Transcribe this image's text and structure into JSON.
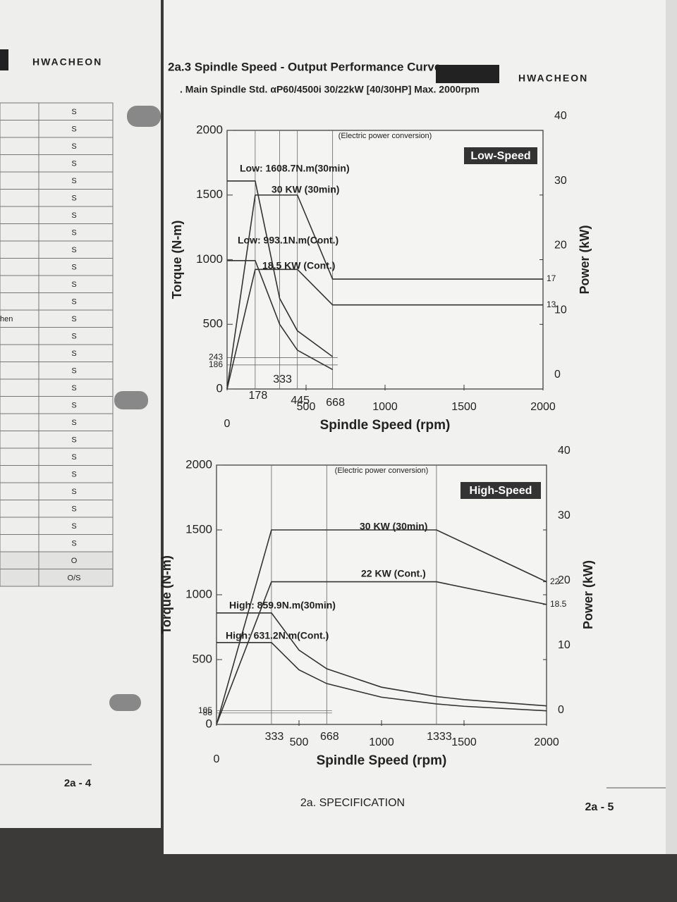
{
  "left_page": {
    "brand": "HWACHEON",
    "side_text": "hen",
    "cells": [
      "S",
      "S",
      "S",
      "S",
      "S",
      "S",
      "S",
      "S",
      "S",
      "S",
      "S",
      "S",
      "S",
      "S",
      "S",
      "S",
      "S",
      "S",
      "S",
      "S",
      "S",
      "S",
      "S",
      "S",
      "S",
      "S",
      "O",
      "O/S"
    ],
    "page_number": "2a - 4"
  },
  "header": {
    "brand": "HWACHEON",
    "title": "2a.3 Spindle Speed - Output Performance Curve",
    "subtitle": ". Main Spindle Std. αP60/4500i 30/22kW [40/30HP] Max. 2000rpm"
  },
  "chart_data": [
    {
      "type": "line",
      "badge": "Low-Speed",
      "note": "(Electric power conversion)",
      "x_label": "Spindle Speed (rpm)",
      "y_label": "Torque (N-m)",
      "y2_label": "Power (kW)",
      "xlim": [
        0,
        2000
      ],
      "xticks": [
        0,
        500,
        1000,
        1500,
        2000
      ],
      "xmarks": [
        178,
        333,
        445,
        668
      ],
      "ylim": [
        0,
        2000
      ],
      "yticks": [
        0,
        186,
        243,
        500,
        1000,
        1500,
        2000
      ],
      "y2lim": [
        0,
        40
      ],
      "y2ticks": [
        0,
        10,
        13,
        17,
        20,
        30,
        40
      ],
      "annotations": [
        "Low: 1608.7N.m(30min)",
        "30 KW (30min)",
        "Low: 993.1N.m(Cont.)",
        "18.5 KW (Cont.)"
      ],
      "series": [
        {
          "color": "#333333",
          "axis": "y",
          "x": [
            0,
            178,
            333,
            445,
            668
          ],
          "values": [
            1608.7,
            1608.7,
            700,
            450,
            250
          ]
        },
        {
          "color": "#333333",
          "axis": "y",
          "x": [
            0,
            178,
            333,
            445,
            668
          ],
          "values": [
            993.1,
            993.1,
            500,
            300,
            150
          ]
        },
        {
          "color": "#333333",
          "axis": "y2",
          "x": [
            0,
            178,
            333,
            445,
            668,
            2000
          ],
          "values": [
            0,
            30,
            30,
            30,
            17,
            17
          ]
        },
        {
          "color": "#333333",
          "axis": "y2",
          "x": [
            0,
            178,
            333,
            445,
            668,
            2000
          ],
          "values": [
            0,
            18.5,
            18.5,
            18.5,
            13,
            13
          ]
        }
      ]
    },
    {
      "type": "line",
      "badge": "High-Speed",
      "note": "(Electric power conversion)",
      "x_label": "Spindle Speed (rpm)",
      "y_label": "Torque (N-m)",
      "y2_label": "Power (kW)",
      "xlim": [
        0,
        2000
      ],
      "xticks": [
        0,
        500,
        1000,
        1500,
        2000
      ],
      "xmarks": [
        333,
        668,
        1333
      ],
      "ylim": [
        0,
        2000
      ],
      "yticks": [
        0,
        88,
        105,
        500,
        1000,
        1500,
        2000
      ],
      "y2lim": [
        0,
        40
      ],
      "y2ticks": [
        0,
        10,
        18.5,
        20,
        22,
        30,
        40
      ],
      "annotations": [
        "30 KW (30min)",
        "22 KW (Cont.)",
        "High: 859.9N.m(30min)",
        "High: 631.2N.m(Cont.)"
      ],
      "series": [
        {
          "color": "#333333",
          "axis": "y",
          "x": [
            0,
            333,
            500,
            668,
            1000,
            1333,
            1500,
            2000
          ],
          "values": [
            859.9,
            859.9,
            573,
            429,
            287,
            215,
            191,
            143
          ]
        },
        {
          "color": "#333333",
          "axis": "y",
          "x": [
            0,
            333,
            500,
            668,
            1000,
            1333,
            1500,
            2000
          ],
          "values": [
            631.2,
            631.2,
            421,
            315,
            210,
            158,
            140,
            105
          ]
        },
        {
          "color": "#333333",
          "axis": "y2",
          "x": [
            0,
            333,
            1333,
            2000
          ],
          "values": [
            0,
            30,
            30,
            22
          ]
        },
        {
          "color": "#333333",
          "axis": "y2",
          "x": [
            0,
            333,
            1333,
            2000
          ],
          "values": [
            0,
            22,
            22,
            18.5
          ]
        }
      ]
    }
  ],
  "footer": {
    "section": "2a. SPECIFICATION",
    "page_number": "2a - 5"
  }
}
